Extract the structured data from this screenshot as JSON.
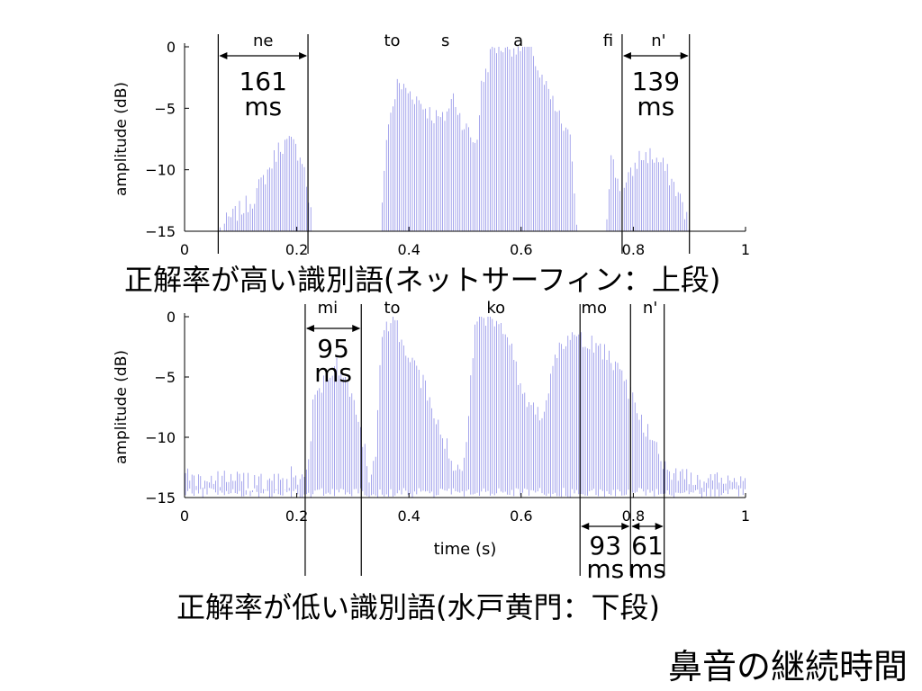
{
  "slide_title": "鼻音の継続時間",
  "chart_data": [
    {
      "type": "area",
      "caption": "正解率が高い識別語(ネットサーフィン：上段)",
      "ylabel": "amplitude (dB)",
      "xlim": [
        0,
        1
      ],
      "ylim": [
        -15,
        0
      ],
      "x_ticks": [
        0,
        0.2,
        0.4,
        0.6,
        0.8,
        1
      ],
      "x_tick_labels": [
        "0",
        "0.2",
        "0.4",
        "0.6",
        "0.8",
        "1"
      ],
      "y_ticks": [
        0,
        -5,
        -10,
        -15
      ],
      "y_tick_labels": [
        "0",
        "−5",
        "−10",
        "−15"
      ],
      "grid": false,
      "envelope": [
        [
          0,
          -15
        ],
        [
          0.06,
          -15
        ],
        [
          0.08,
          -14
        ],
        [
          0.12,
          -12.5
        ],
        [
          0.15,
          -10
        ],
        [
          0.17,
          -8
        ],
        [
          0.19,
          -7.8
        ],
        [
          0.21,
          -9
        ],
        [
          0.22,
          -12
        ],
        [
          0.23,
          -15
        ],
        [
          0.35,
          -15
        ],
        [
          0.36,
          -7
        ],
        [
          0.38,
          -3
        ],
        [
          0.41,
          -4
        ],
        [
          0.44,
          -5.5
        ],
        [
          0.46,
          -6
        ],
        [
          0.48,
          -4
        ],
        [
          0.49,
          -5.5
        ],
        [
          0.5,
          -6.5
        ],
        [
          0.52,
          -8
        ],
        [
          0.53,
          -3
        ],
        [
          0.55,
          0
        ],
        [
          0.58,
          0
        ],
        [
          0.62,
          0
        ],
        [
          0.63,
          -2
        ],
        [
          0.65,
          -4
        ],
        [
          0.67,
          -6
        ],
        [
          0.69,
          -8
        ],
        [
          0.7,
          -15
        ],
        [
          0.75,
          -15
        ],
        [
          0.76,
          -9
        ],
        [
          0.78,
          -12
        ],
        [
          0.79,
          -11
        ],
        [
          0.81,
          -9
        ],
        [
          0.83,
          -8.8
        ],
        [
          0.85,
          -9.5
        ],
        [
          0.87,
          -11
        ],
        [
          0.89,
          -13
        ],
        [
          0.9,
          -15
        ],
        [
          1,
          -15
        ]
      ],
      "baseline_noise": false,
      "phonemes": [
        {
          "label": "ne",
          "x": 0.14
        },
        {
          "label": "to",
          "x": 0.37
        },
        {
          "label": "s",
          "x": 0.465
        },
        {
          "label": "a",
          "x": 0.595
        },
        {
          "label": "fi",
          "x": 0.755
        },
        {
          "label": "n'",
          "x": 0.845
        }
      ],
      "boundaries": [
        0.06,
        0.22,
        0.78,
        0.9
      ],
      "durations": [
        {
          "from": 0.06,
          "to": 0.22,
          "value": "161",
          "unit": "ms",
          "arrow_pos": "top"
        },
        {
          "from": 0.78,
          "to": 0.9,
          "value": "139",
          "unit": "ms",
          "arrow_pos": "top"
        }
      ]
    },
    {
      "type": "area",
      "caption": "正解率が低い識別語(水戸黄門：下段)",
      "xlabel": "time (s)",
      "ylabel": "amplitude (dB)",
      "xlim": [
        0,
        1
      ],
      "ylim": [
        -15,
        0
      ],
      "x_ticks": [
        0,
        0.2,
        0.4,
        0.6,
        0.8,
        1
      ],
      "x_tick_labels": [
        "0",
        "0.2",
        "0.4",
        "0.6",
        "0.8",
        "1"
      ],
      "y_ticks": [
        0,
        -5,
        -10,
        -15
      ],
      "y_tick_labels": [
        "0",
        "−5",
        "−10",
        "−15"
      ],
      "grid": false,
      "envelope": [
        [
          0,
          -13.5
        ],
        [
          0.21,
          -13.8
        ],
        [
          0.22,
          -13
        ],
        [
          0.23,
          -7
        ],
        [
          0.25,
          -5
        ],
        [
          0.27,
          -4
        ],
        [
          0.29,
          -5.5
        ],
        [
          0.31,
          -8
        ],
        [
          0.32,
          -11
        ],
        [
          0.33,
          -13.5
        ],
        [
          0.34,
          -12
        ],
        [
          0.35,
          -2
        ],
        [
          0.37,
          0
        ],
        [
          0.39,
          -2
        ],
        [
          0.41,
          -4
        ],
        [
          0.43,
          -6
        ],
        [
          0.45,
          -9
        ],
        [
          0.47,
          -11
        ],
        [
          0.48,
          -13
        ],
        [
          0.5,
          -12
        ],
        [
          0.51,
          -5
        ],
        [
          0.52,
          0
        ],
        [
          0.56,
          0
        ],
        [
          0.58,
          -2
        ],
        [
          0.6,
          -6
        ],
        [
          0.62,
          -7.5
        ],
        [
          0.64,
          -8
        ],
        [
          0.66,
          -3
        ],
        [
          0.69,
          -2
        ],
        [
          0.72,
          -2
        ],
        [
          0.75,
          -3
        ],
        [
          0.78,
          -5
        ],
        [
          0.8,
          -7
        ],
        [
          0.83,
          -10
        ],
        [
          0.85,
          -12
        ],
        [
          0.87,
          -13
        ],
        [
          0.9,
          -13.5
        ],
        [
          1,
          -13.5
        ]
      ],
      "baseline_noise": true,
      "phonemes": [
        {
          "label": "mi",
          "x": 0.255
        },
        {
          "label": "to",
          "x": 0.37
        },
        {
          "label": "ko",
          "x": 0.555
        },
        {
          "label": "mo",
          "x": 0.73
        },
        {
          "label": "n'",
          "x": 0.83
        }
      ],
      "boundaries": [
        0.215,
        0.315,
        0.705,
        0.795,
        0.855
      ],
      "durations": [
        {
          "from": 0.215,
          "to": 0.315,
          "value": "95",
          "unit": "ms",
          "arrow_pos": "top"
        },
        {
          "from": 0.705,
          "to": 0.795,
          "value": "93",
          "unit": "ms",
          "arrow_pos": "bottom"
        },
        {
          "from": 0.795,
          "to": 0.855,
          "value": "61",
          "unit": "ms",
          "arrow_pos": "bottom"
        }
      ]
    }
  ]
}
